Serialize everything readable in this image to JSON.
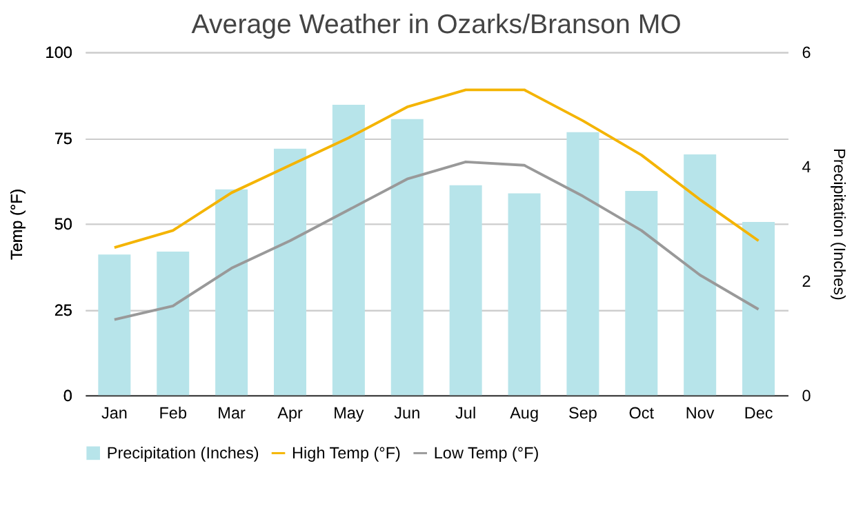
{
  "chart_data": {
    "type": "bar",
    "title": "Average Weather in Ozarks/Branson MO",
    "ylabel": "Temp (°F)",
    "y2label": "Precipitation (Inches)",
    "categories": [
      "Jan",
      "Feb",
      "Mar",
      "Apr",
      "May",
      "Jun",
      "Jul",
      "Aug",
      "Sep",
      "Oct",
      "Nov",
      "Dec"
    ],
    "series": [
      {
        "name": "Precipitation (Inches)",
        "axis": "y2",
        "color": "#b7e4ea",
        "values": [
          2.46,
          2.51,
          3.6,
          4.31,
          5.08,
          4.83,
          3.67,
          3.53,
          4.6,
          3.57,
          4.21,
          3.03
        ]
      },
      {
        "name": "High Temp (°F)",
        "type": "line",
        "color": "#f4b400",
        "values": [
          43,
          48,
          59,
          67,
          75,
          84,
          89,
          89,
          80,
          70,
          57,
          45
        ]
      },
      {
        "name": "Low Temp (°F)",
        "type": "line",
        "color": "#999999",
        "values": [
          22,
          26,
          37,
          45,
          54,
          63,
          68,
          67,
          58,
          48,
          35,
          25
        ]
      }
    ],
    "ylim": [
      0,
      100
    ],
    "yticks": [
      0,
      25,
      50,
      75,
      100
    ],
    "y2lim": [
      0,
      6
    ],
    "y2ticks": [
      0,
      2,
      4,
      6
    ],
    "grid": "y",
    "legend": "bottom",
    "marker": "none",
    "line_style": "solid"
  }
}
